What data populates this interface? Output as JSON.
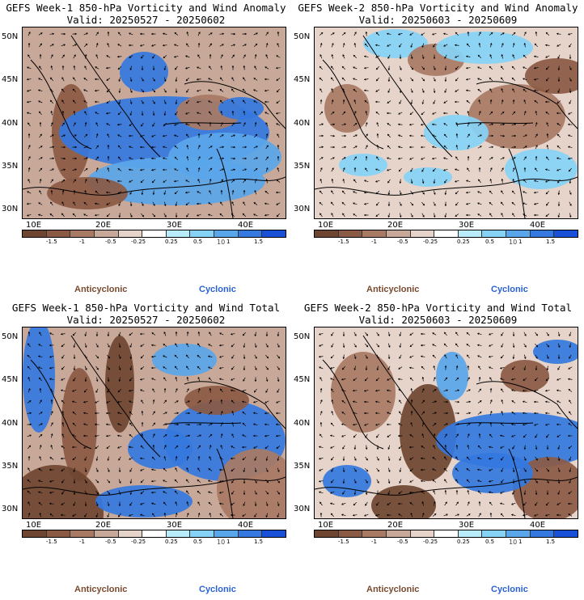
{
  "legend": {
    "tick_labels": [
      "-1.5",
      "-1",
      "-0.5",
      "-0.25",
      "0.25",
      "0.5",
      "1",
      "1.5"
    ],
    "scale_label": "10",
    "colors": [
      "#6e4530",
      "#8b5a44",
      "#a87a64",
      "#c8a898",
      "#e6d4ca",
      "#ffffff",
      "#b8ecfa",
      "#86d2f6",
      "#5aa6ea",
      "#3478e0",
      "#1850d8"
    ]
  },
  "labels": {
    "anticyclonic": "Anticyclonic",
    "cyclonic": "Cyclonic"
  },
  "axes": {
    "lat": [
      "50N",
      "45N",
      "40N",
      "35N",
      "30N"
    ],
    "lon": [
      "10E",
      "20E",
      "30E",
      "40E"
    ]
  },
  "panels": [
    {
      "line1": "GEFS Week-1 850-hPa Vorticity and Wind Anomaly",
      "line2": "Valid: 20250527 - 20250602"
    },
    {
      "line1": "GEFS Week-2 850-hPa Vorticity and Wind Anomaly",
      "line2": "Valid: 20250603 - 20250609"
    },
    {
      "line1": "GEFS Week-1 850-hPa Vorticity and Wind Total",
      "line2": "Valid: 20250527 - 20250602"
    },
    {
      "line1": "GEFS Week-2 850-hPa Vorticity and Wind Total",
      "line2": "Valid: 20250603 - 20250609"
    }
  ]
}
